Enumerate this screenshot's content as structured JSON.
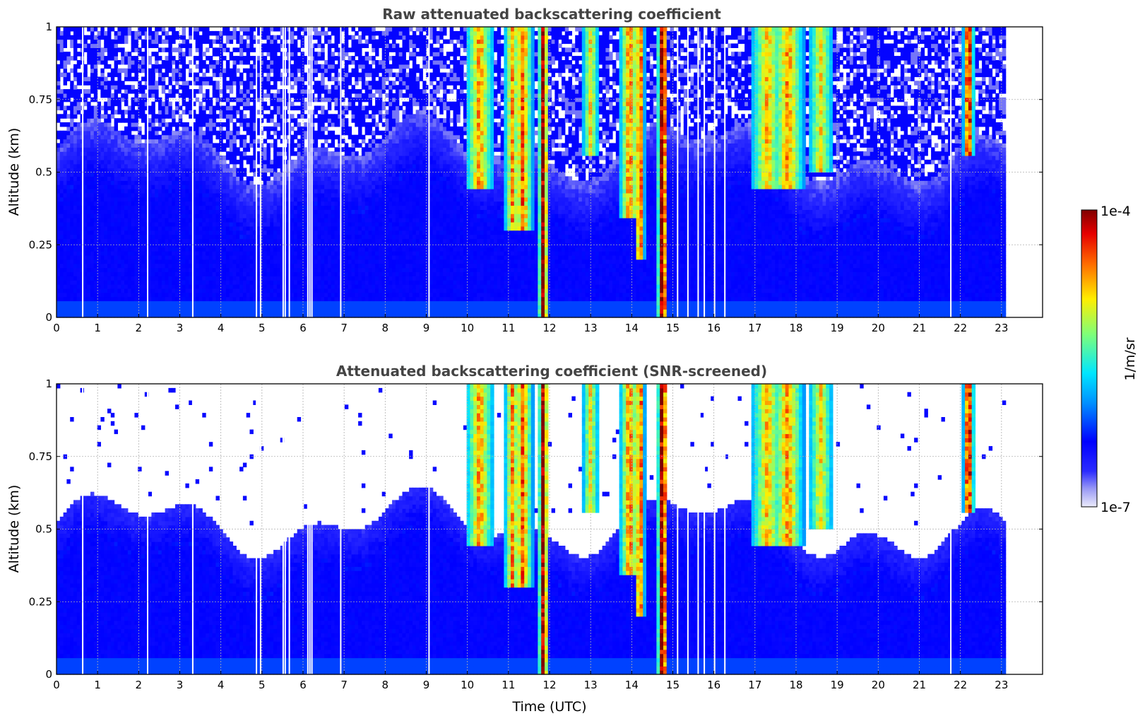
{
  "chart_data": [
    {
      "type": "heatmap",
      "title": "Raw attenuated backscattering coefficient",
      "xlabel": "",
      "ylabel": "Altitude (km)",
      "xlim": [
        0,
        24
      ],
      "ylim": [
        0,
        1
      ],
      "x_ticks": [
        "0",
        "1",
        "2",
        "3",
        "4",
        "5",
        "6",
        "7",
        "8",
        "9",
        "10",
        "11",
        "12",
        "13",
        "14",
        "15",
        "16",
        "17",
        "18",
        "19",
        "20",
        "21",
        "22",
        "23"
      ],
      "y_ticks": [
        "0",
        "0.25",
        "0.5",
        "0.75",
        "1"
      ],
      "grid": true,
      "data_extent_hours": [
        0,
        23.1
      ],
      "screened": false
    },
    {
      "type": "heatmap",
      "title": "Attenuated backscattering coefficient (SNR-screened)",
      "xlabel": "Time (UTC)",
      "ylabel": "Altitude (km)",
      "xlim": [
        0,
        24
      ],
      "ylim": [
        0,
        1
      ],
      "x_ticks": [
        "0",
        "1",
        "2",
        "3",
        "4",
        "5",
        "6",
        "7",
        "8",
        "9",
        "10",
        "11",
        "12",
        "13",
        "14",
        "15",
        "16",
        "17",
        "18",
        "19",
        "20",
        "21",
        "22",
        "23"
      ],
      "y_ticks": [
        "0",
        "0.25",
        "0.5",
        "0.75",
        "1"
      ],
      "grid": true,
      "data_extent_hours": [
        0,
        23.1
      ],
      "screened": true
    }
  ],
  "colorbar": {
    "label": "1/m/sr",
    "max_label": "1e-4",
    "min_label": "1e-7",
    "colormap": "jet",
    "scale": "log"
  },
  "features": {
    "plumes": [
      {
        "t": 10.3,
        "w": 0.35,
        "bottom": 0.45,
        "peak": 0.55
      },
      {
        "t": 11.1,
        "w": 0.2,
        "bottom": 0.3,
        "peak": 0.55
      },
      {
        "t": 11.35,
        "w": 0.25,
        "bottom": 0.3,
        "peak": 0.6
      },
      {
        "t": 11.85,
        "w": 0.12,
        "bottom": 0.0,
        "peak": 0.95
      },
      {
        "t": 13.0,
        "w": 0.2,
        "bottom": 0.55,
        "peak": 0.45
      },
      {
        "t": 13.95,
        "w": 0.25,
        "bottom": 0.35,
        "peak": 0.6
      },
      {
        "t": 14.2,
        "w": 0.12,
        "bottom": 0.2,
        "peak": 0.75
      },
      {
        "t": 14.75,
        "w": 0.13,
        "bottom": 0.0,
        "peak": 1.0
      },
      {
        "t": 17.3,
        "w": 0.4,
        "bottom": 0.45,
        "peak": 0.5
      },
      {
        "t": 17.8,
        "w": 0.4,
        "bottom": 0.45,
        "peak": 0.55
      },
      {
        "t": 18.6,
        "w": 0.3,
        "bottom": 0.5,
        "peak": 0.45
      },
      {
        "t": 22.2,
        "w": 0.14,
        "bottom": 0.55,
        "peak": 0.85
      }
    ],
    "gaps_hours": [
      0.62,
      2.2,
      3.3,
      4.85,
      4.95,
      5.5,
      5.55,
      5.65,
      6.1,
      6.15,
      6.2,
      6.9,
      9.05,
      15.1,
      15.35,
      15.6,
      15.75,
      16.0,
      16.25,
      21.75
    ]
  }
}
